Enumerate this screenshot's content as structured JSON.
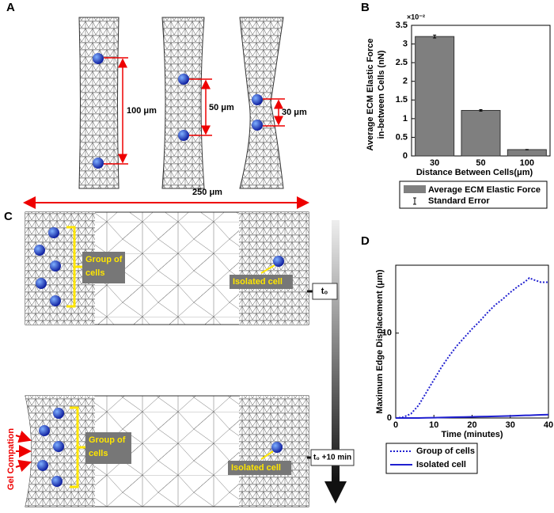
{
  "panel_labels": [
    "A",
    "B",
    "C",
    "D"
  ],
  "panel_a": {
    "distances": [
      "100 μm",
      "50 μm",
      "30 μm"
    ]
  },
  "panel_c": {
    "width_label": "250 μm",
    "group_label": [
      "Group of",
      "cells"
    ],
    "isolated_label": "Isolated cell",
    "compaction_label": "Gel Compation",
    "time_labels": [
      "t₀",
      "t₀ +10 min"
    ]
  },
  "chart_data": [
    {
      "type": "bar",
      "y_label": [
        "Average ECM Elastic Force",
        "in-between Cells (nN)"
      ],
      "y_exponent_label": "×10⁻²",
      "x_label": "Distance Between Cells(μm)",
      "categories": [
        "30",
        "50",
        "100"
      ],
      "series": [
        {
          "name": "Average ECM Elastic Force",
          "color": "#7f7f7f",
          "values": [
            3.2,
            1.22,
            0.17
          ],
          "errors": [
            0.04,
            0.02,
            0.005
          ]
        }
      ],
      "error_name": "Standard Error",
      "ylim": [
        0,
        3.5
      ],
      "yticks": [
        0,
        0.5,
        1,
        1.5,
        2,
        2.5,
        3,
        3.5
      ]
    },
    {
      "type": "line",
      "x_label": "Time (minutes)",
      "y_label": "Maximum Edge Displacement (μm)",
      "x": [
        0,
        2,
        4,
        6,
        8,
        10,
        12,
        14,
        16,
        18,
        20,
        22,
        24,
        26,
        28,
        30,
        32,
        34,
        35,
        36,
        38,
        40
      ],
      "series": [
        {
          "name": "Group of cells",
          "color": "#1f1fd0",
          "dash": true,
          "values": [
            0,
            0.1,
            0.5,
            1.5,
            3,
            4.5,
            6,
            7.3,
            8.5,
            9.5,
            10.5,
            11.4,
            12.4,
            13.3,
            14,
            14.8,
            15.5,
            16.1,
            16.5,
            16.3,
            16,
            16
          ]
        },
        {
          "name": "Isolated cell",
          "color": "#1f1fd0",
          "dash": false,
          "values": [
            0,
            0,
            0,
            0,
            0.02,
            0.04,
            0.06,
            0.08,
            0.1,
            0.12,
            0.14,
            0.16,
            0.18,
            0.2,
            0.22,
            0.25,
            0.28,
            0.31,
            0.32,
            0.34,
            0.37,
            0.4
          ]
        }
      ],
      "xlim": [
        0,
        40
      ],
      "xticks": [
        0,
        10,
        20,
        30,
        40
      ],
      "ylim": [
        0,
        18
      ],
      "yticks": [
        0,
        10
      ]
    }
  ]
}
